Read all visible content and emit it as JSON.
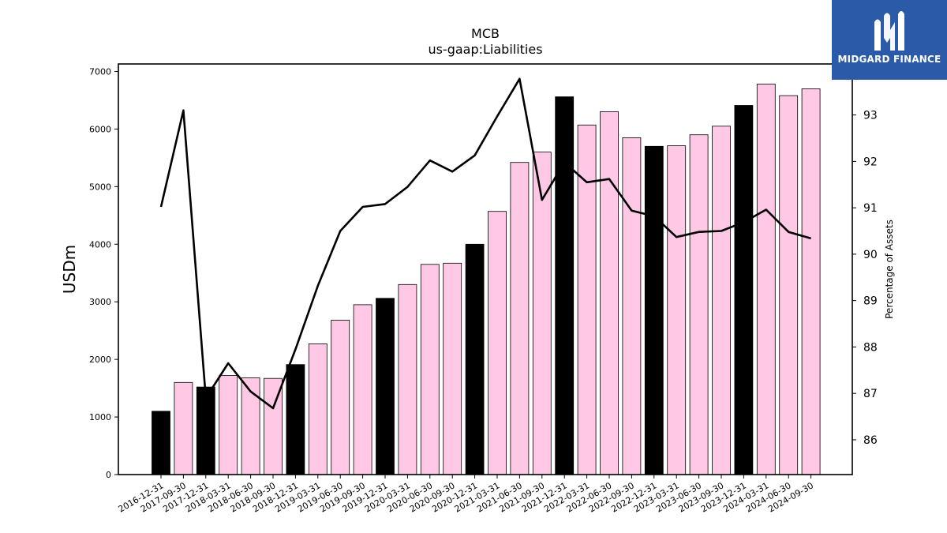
{
  "brand": {
    "name": "MIDGARD FINANCE",
    "color": "#2b5aa8"
  },
  "chart_data": {
    "type": "bar",
    "title": "MCB",
    "subtitle": "us-gaap:Liabilities",
    "ylabel": "USDm",
    "y2label": "Percentage of Assets",
    "ylim": [
      0,
      7130
    ],
    "y2lim": [
      85.25,
      94.1
    ],
    "yticks": [
      0,
      1000,
      2000,
      3000,
      4000,
      5000,
      6000,
      7000
    ],
    "y2ticks": [
      86,
      87,
      88,
      89,
      90,
      91,
      92,
      93
    ],
    "categories": [
      "2016-12-31",
      "2017-09-30",
      "2017-12-31",
      "2018-03-31",
      "2018-06-30",
      "2018-09-30",
      "2018-12-31",
      "2019-03-31",
      "2019-06-30",
      "2019-09-30",
      "2019-12-31",
      "2020-03-31",
      "2020-06-30",
      "2020-09-30",
      "2020-12-31",
      "2021-03-31",
      "2021-06-30",
      "2021-09-30",
      "2021-12-31",
      "2022-03-31",
      "2022-06-30",
      "2022-09-30",
      "2022-12-31",
      "2023-03-31",
      "2023-06-30",
      "2023-09-30",
      "2023-12-31",
      "2024-03-31",
      "2024-06-30",
      "2024-09-30"
    ],
    "series": [
      {
        "type": "bar",
        "values": [
          1100,
          1600,
          1520,
          1720,
          1680,
          1670,
          1910,
          2270,
          2680,
          2950,
          3060,
          3300,
          3650,
          3670,
          4000,
          4570,
          5420,
          5600,
          6560,
          6070,
          6300,
          5850,
          5700,
          5710,
          5900,
          6050,
          6410,
          6780,
          6580,
          6700
        ],
        "annual": [
          true,
          false,
          true,
          false,
          false,
          false,
          true,
          false,
          false,
          false,
          true,
          false,
          false,
          false,
          true,
          false,
          false,
          false,
          true,
          false,
          false,
          false,
          true,
          false,
          false,
          false,
          true,
          false,
          false,
          false
        ]
      },
      {
        "type": "line",
        "axis": "right",
        "values": [
          91.02,
          93.1,
          86.9,
          87.65,
          87.04,
          86.68,
          87.95,
          89.32,
          90.5,
          91.02,
          91.08,
          91.45,
          92.02,
          91.78,
          92.13,
          92.97,
          93.78,
          91.17,
          91.98,
          91.55,
          91.62,
          90.94,
          90.82,
          90.37,
          90.48,
          90.5,
          90.69,
          90.96,
          90.48,
          90.34
        ]
      }
    ],
    "colors": {
      "annual_bar": "#000000",
      "quarter_bar": "#ffc8e4",
      "line": "#000000"
    },
    "grid": false,
    "legend": "none"
  }
}
